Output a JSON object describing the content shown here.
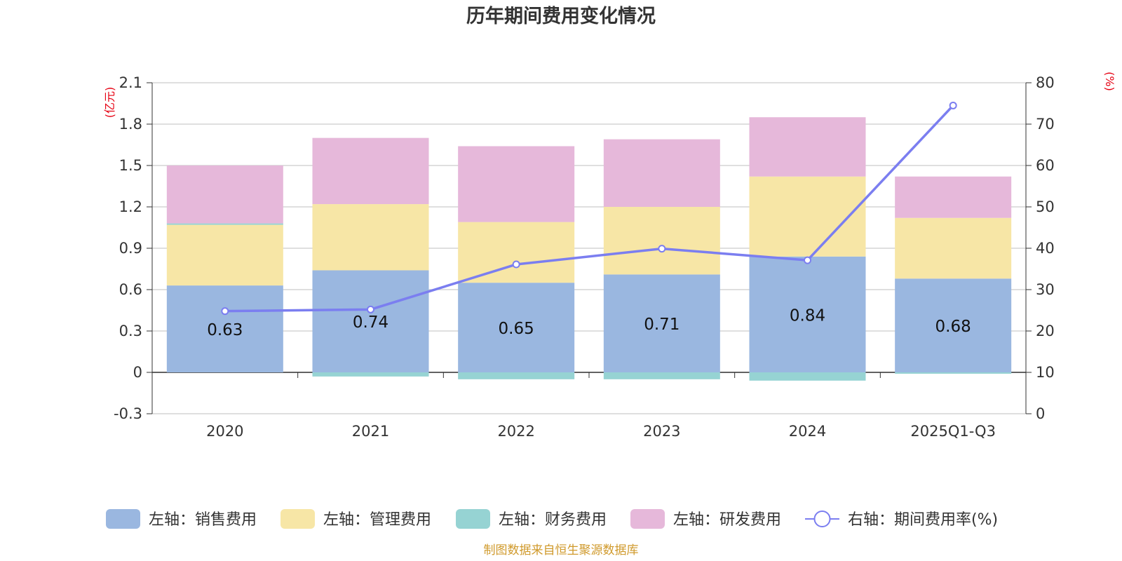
{
  "chart_data": {
    "type": "bar",
    "stacked": true,
    "title": "历年期间费用变化情况",
    "categories": [
      "2020",
      "2021",
      "2022",
      "2023",
      "2024",
      "2025Q1-Q3"
    ],
    "left_axis": {
      "unit": "(亿元)",
      "ylim": [
        -0.3,
        2.1
      ],
      "ticks": [
        2.1,
        1.8,
        1.5,
        1.2,
        0.9,
        0.6,
        0.3,
        0,
        -0.3
      ],
      "tick_labels": [
        "2.1",
        "1.8",
        "1.5",
        "1.2",
        "0.9",
        "0.6",
        "0.3",
        "0",
        "-0.3"
      ]
    },
    "right_axis": {
      "unit": "(%)",
      "ylim": [
        0,
        80
      ],
      "ticks": [
        80,
        70,
        60,
        50,
        40,
        30,
        20,
        10,
        0
      ],
      "tick_labels": [
        "80",
        "70",
        "60",
        "50",
        "40",
        "30",
        "20",
        "10",
        "0"
      ]
    },
    "series": [
      {
        "name": "左轴：销售费用",
        "axis": "left",
        "kind": "bar",
        "color": "#9ab7e0",
        "values": [
          0.63,
          0.74,
          0.65,
          0.71,
          0.84,
          0.68
        ],
        "labels": [
          "0.63",
          "0.74",
          "0.65",
          "0.71",
          "0.84",
          "0.68"
        ]
      },
      {
        "name": "左轴：管理费用",
        "axis": "left",
        "kind": "bar",
        "color": "#f7e6a6",
        "values": [
          0.44,
          0.48,
          0.44,
          0.49,
          0.58,
          0.44
        ]
      },
      {
        "name": "左轴：财务费用",
        "axis": "left",
        "kind": "bar",
        "color": "#96d3d3",
        "values": [
          0.01,
          -0.03,
          -0.05,
          -0.05,
          -0.06,
          -0.01
        ]
      },
      {
        "name": "左轴：研发费用",
        "axis": "left",
        "kind": "bar",
        "color": "#e6b8da",
        "values": [
          0.42,
          0.48,
          0.55,
          0.49,
          0.43,
          0.3
        ]
      },
      {
        "name": "右轴：期间费用率(%)",
        "axis": "right",
        "kind": "line",
        "color": "#7b7ef0",
        "values": [
          24.8,
          25.2,
          36.1,
          39.9,
          37.1,
          74.5
        ]
      }
    ],
    "source": "制图数据来自恒生聚源数据库"
  }
}
